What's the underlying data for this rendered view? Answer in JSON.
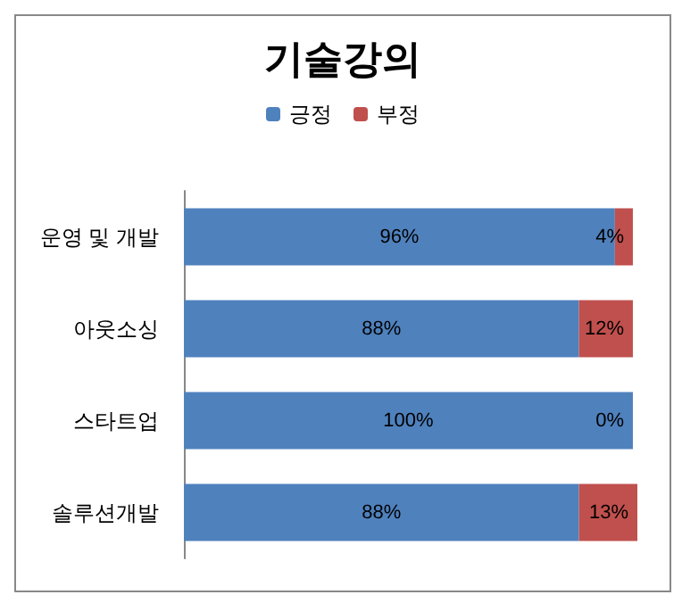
{
  "chart_data": {
    "type": "bar",
    "title": "기술강의",
    "orientation": "horizontal",
    "stacked": true,
    "legend": "top",
    "grid": false,
    "categories": [
      "운영 및 개발",
      "아웃소싱",
      "스타트업",
      "솔루션개발"
    ],
    "series": [
      {
        "name": "긍정",
        "color": "#4f81bd",
        "values": [
          96,
          88,
          100,
          88
        ],
        "value_labels": [
          "96%",
          "88%",
          "100%",
          "88%"
        ]
      },
      {
        "name": "부정",
        "color": "#c0504d",
        "values": [
          4,
          12,
          0,
          13
        ],
        "value_labels": [
          "4%",
          "12%",
          "0%",
          "13%"
        ]
      }
    ]
  }
}
